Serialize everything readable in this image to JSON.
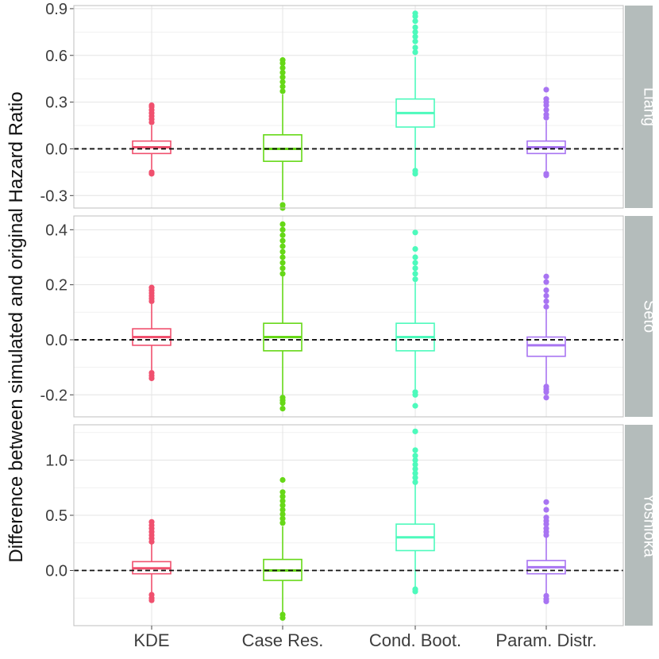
{
  "chart_data": {
    "type": "boxplot",
    "ylabel": "Difference between simulated and original Hazard Ratio",
    "categories": [
      "KDE",
      "Case Res.",
      "Cond. Boot.",
      "Param. Distr."
    ],
    "colors": {
      "KDE": "#f0506e",
      "Case Res.": "#66d817",
      "Cond. Boot.": "#4dfabc",
      "Param. Distr.": "#a874f2"
    },
    "reference_line": 0,
    "panels": [
      {
        "label": "Liang",
        "ylim": [
          -0.38,
          0.92
        ],
        "ticks": [
          -0.3,
          0.0,
          0.3,
          0.6,
          0.9
        ],
        "tick_labels": [
          "-0.3",
          "0.0",
          "0.3",
          "0.6",
          "0.9"
        ],
        "boxes": [
          {
            "category": "KDE",
            "q1": -0.03,
            "median": 0.01,
            "q3": 0.05,
            "whisker_low": -0.13,
            "whisker_high": 0.15,
            "outliers": [
              -0.16,
              -0.15,
              0.17,
              0.19,
              0.21,
              0.23,
              0.25,
              0.27,
              0.28
            ]
          },
          {
            "category": "Case Res.",
            "q1": -0.08,
            "median": 0.0,
            "q3": 0.09,
            "whisker_low": -0.33,
            "whisker_high": 0.35,
            "outliers": [
              -0.36,
              -0.38,
              0.37,
              0.4,
              0.43,
              0.46,
              0.49,
              0.52,
              0.55,
              0.57
            ]
          },
          {
            "category": "Cond. Boot.",
            "q1": 0.14,
            "median": 0.23,
            "q3": 0.32,
            "whisker_low": -0.13,
            "whisker_high": 0.59,
            "outliers": [
              -0.14,
              -0.16,
              0.62,
              0.65,
              0.69,
              0.72,
              0.75,
              0.78,
              0.82,
              0.85,
              0.87
            ]
          },
          {
            "category": "Param. Distr.",
            "q1": -0.03,
            "median": 0.01,
            "q3": 0.05,
            "whisker_low": -0.14,
            "whisker_high": 0.18,
            "outliers": [
              -0.16,
              -0.17,
              0.2,
              0.22,
              0.25,
              0.28,
              0.3,
              0.32,
              0.38
            ]
          }
        ]
      },
      {
        "label": "Seto",
        "ylim": [
          -0.28,
          0.45
        ],
        "ticks": [
          -0.2,
          0.0,
          0.2,
          0.4
        ],
        "tick_labels": [
          "-0.2",
          "0.0",
          "0.2",
          "0.4"
        ],
        "boxes": [
          {
            "category": "KDE",
            "q1": -0.02,
            "median": 0.01,
            "q3": 0.04,
            "whisker_low": -0.11,
            "whisker_high": 0.13,
            "outliers": [
              -0.12,
              -0.13,
              -0.14,
              0.14,
              0.15,
              0.16,
              0.17,
              0.18,
              0.19
            ]
          },
          {
            "category": "Case Res.",
            "q1": -0.04,
            "median": 0.01,
            "q3": 0.06,
            "whisker_low": -0.2,
            "whisker_high": 0.23,
            "outliers": [
              -0.21,
              -0.22,
              -0.23,
              -0.25,
              0.24,
              0.26,
              0.28,
              0.3,
              0.32,
              0.34,
              0.36,
              0.38,
              0.4,
              0.42
            ]
          },
          {
            "category": "Cond. Boot.",
            "q1": -0.04,
            "median": 0.01,
            "q3": 0.06,
            "whisker_low": -0.18,
            "whisker_high": 0.21,
            "outliers": [
              -0.19,
              -0.2,
              -0.24,
              0.22,
              0.24,
              0.26,
              0.28,
              0.3,
              0.33,
              0.39
            ]
          },
          {
            "category": "Param. Distr.",
            "q1": -0.06,
            "median": -0.02,
            "q3": 0.01,
            "whisker_low": -0.16,
            "whisker_high": 0.11,
            "outliers": [
              -0.17,
              -0.18,
              -0.19,
              -0.21,
              0.12,
              0.14,
              0.16,
              0.18,
              0.21,
              0.23
            ]
          }
        ]
      },
      {
        "label": "Yoshioka",
        "ylim": [
          -0.5,
          1.32
        ],
        "ticks": [
          0.0,
          0.5,
          1.0
        ],
        "tick_labels": [
          "0.0",
          "0.5",
          "1.0"
        ],
        "boxes": [
          {
            "category": "KDE",
            "q1": -0.03,
            "median": 0.02,
            "q3": 0.08,
            "whisker_low": -0.2,
            "whisker_high": 0.24,
            "outliers": [
              -0.22,
              -0.25,
              -0.27,
              0.26,
              0.29,
              0.32,
              0.35,
              0.38,
              0.41,
              0.44
            ]
          },
          {
            "category": "Case Res.",
            "q1": -0.09,
            "median": 0.0,
            "q3": 0.1,
            "whisker_low": -0.38,
            "whisker_high": 0.4,
            "outliers": [
              -0.4,
              -0.43,
              0.43,
              0.47,
              0.51,
              0.55,
              0.59,
              0.63,
              0.67,
              0.71,
              0.82
            ]
          },
          {
            "category": "Cond. Boot.",
            "q1": 0.18,
            "median": 0.3,
            "q3": 0.42,
            "whisker_low": -0.15,
            "whisker_high": 0.78,
            "outliers": [
              -0.17,
              -0.19,
              0.8,
              0.84,
              0.88,
              0.92,
              0.96,
              1.0,
              1.04,
              1.09,
              1.26
            ]
          },
          {
            "category": "Param. Distr.",
            "q1": -0.03,
            "median": 0.03,
            "q3": 0.09,
            "whisker_low": -0.21,
            "whisker_high": 0.3,
            "outliers": [
              -0.23,
              -0.26,
              -0.28,
              0.32,
              0.35,
              0.38,
              0.42,
              0.45,
              0.48,
              0.55,
              0.62
            ]
          }
        ]
      }
    ]
  }
}
